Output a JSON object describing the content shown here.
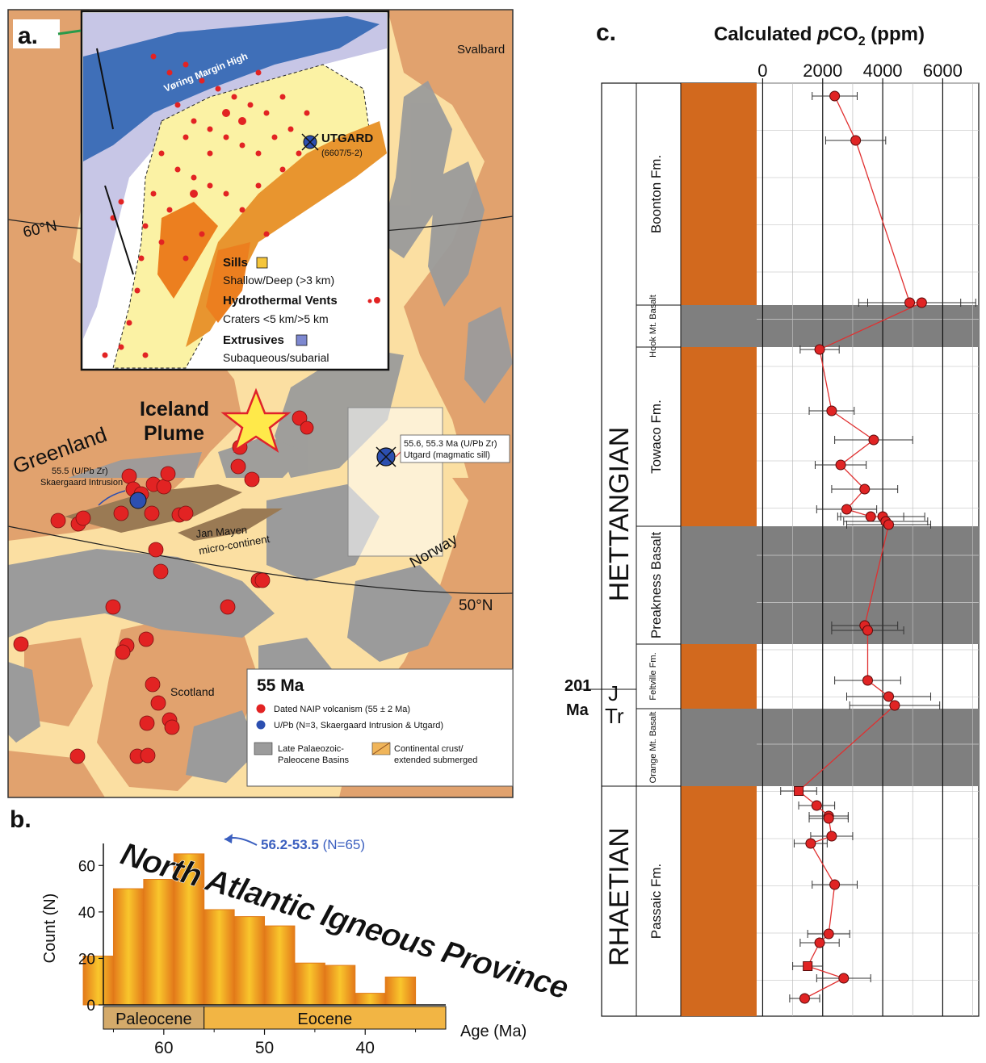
{
  "panel_a": {
    "label": "a.",
    "places": {
      "svalbard": "Svalbard",
      "greenland": "Greenland",
      "norway": "Norway",
      "scotland": "Scotland",
      "jan_mayen_1": "Jan Mayen",
      "jan_mayen_2": "micro-continent",
      "plume_1": "Iceland",
      "plume_2": "Plume",
      "lat60": "60°N",
      "lat50": "50°N",
      "skaergaard_1": "55.5 (U/Pb Zr)",
      "skaergaard_2": "Skaergaard Intrusion",
      "utgard_1": "55.6, 55.3 Ma (U/Pb Zr)",
      "utgard_2": "Utgard (magmatic sill)"
    },
    "inset": {
      "voring": "Vøring Margin High",
      "utgard_title": "UTGARD",
      "utgard_well": "(6607/5-2)",
      "sills_title": "Sills",
      "sills_desc": "Shallow/Deep (>3 km)",
      "vents_title": "Hydrothermal Vents",
      "vents_desc": "Craters <5 km/>5 km",
      "extrusives_title": "Extrusives",
      "extrusives_desc": "Subaqueous/subarial"
    },
    "legend": {
      "title": "55 Ma",
      "dated": "Dated NAIP volcanism (55 ± 2 Ma)",
      "upb": "U/Pb (N=3, Skaergaard Intrusion & Utgard)",
      "basins_1": "Late Palaeozoic-",
      "basins_2": "Paleocene Basins",
      "crust_1": "Continental crust/",
      "crust_2": "extended submerged"
    },
    "colors": {
      "ocean": "#fbdfa2",
      "land": "#e1a26e",
      "crust": "#f0b55a",
      "basin": "#9b9b9b",
      "volcanism": "#e22323",
      "upb": "#2c4fb0"
    }
  },
  "panel_b": {
    "label": "b.",
    "ylabel": "Count (N)",
    "xlabel": "Age (Ma)",
    "overlay": "North Atlantic Igneous Province",
    "annotation_range": "56.2-53.5",
    "annotation_n": "(N=65)",
    "epochs": [
      "Paleocene",
      "Eocene"
    ]
  },
  "panel_c": {
    "label": "c.",
    "title_prefix": "Calculated ",
    "title_p": "p",
    "title_co": "CO",
    "title_sub": "2",
    "title_unit": " (ppm)",
    "stages": [
      "HETTANGIAN",
      "RHAETIAN"
    ],
    "periods": [
      "J",
      "Tr"
    ],
    "boundary_age": "201",
    "boundary_unit": "Ma",
    "formations": [
      "Boonton Fm.",
      "Hook Mt. Basalt",
      "Towaco Fm.",
      "Preakness Basalt",
      "Feltville Fm.",
      "Orange Mt. Basalt",
      "Passaic Fm."
    ]
  },
  "chart_data": [
    {
      "type": "bar",
      "title": "",
      "xlabel": "Age (Ma)",
      "ylabel": "Count (N)",
      "x_tick_labels": [
        "60",
        "50",
        "40"
      ],
      "y_tick_labels": [
        "0",
        "20",
        "40",
        "60"
      ],
      "xlim": [
        66,
        32
      ],
      "ylim": [
        0,
        66
      ],
      "bin_width_ma": 3,
      "bin_left_edges": [
        65,
        62,
        59,
        56,
        53,
        50,
        47,
        44,
        41,
        38,
        35
      ],
      "values": [
        21,
        50,
        54,
        65,
        41,
        38,
        34,
        18,
        17,
        5,
        12
      ],
      "highlight": {
        "range": "56.2-53.5",
        "n": 65
      },
      "epochs": [
        {
          "name": "Paleocene",
          "from": 66,
          "to": 56
        },
        {
          "name": "Eocene",
          "from": 56,
          "to": 32
        }
      ],
      "colors": {
        "bar_edge": "#e07b18",
        "bar_mid": "#f7c02a",
        "paleocene": "#d4aa6a",
        "eocene": "#f2b544"
      }
    },
    {
      "type": "scatter",
      "title": "Calculated pCO2 (ppm)",
      "xlabel": "",
      "x_tick_labels": [
        "0",
        "2000",
        "4000",
        "6000"
      ],
      "xlim": [
        -200,
        7200
      ],
      "y_axis": "stratigraphic position",
      "series": [
        {
          "values": [
            {
              "x": 2400,
              "err": 750
            },
            {
              "x": 3100,
              "err": 1000
            },
            {
              "x": 4900,
              "err": 1700
            },
            {
              "x": 5300,
              "err": 1800
            },
            {
              "x": 1900,
              "err": 650
            },
            {
              "x": 2300,
              "err": 750
            },
            {
              "x": 3700,
              "err": 1300
            },
            {
              "x": 2600,
              "err": 850
            },
            {
              "x": 3400,
              "err": 1100
            },
            {
              "x": 2800,
              "err": 1000
            },
            {
              "x": 3600,
              "err": 1100
            },
            {
              "x": 4000,
              "err": 1400
            },
            {
              "x": 4100,
              "err": 1400
            },
            {
              "x": 4200,
              "err": 1400
            },
            {
              "x": 3400,
              "err": 1100
            },
            {
              "x": 3500,
              "err": 1200
            },
            {
              "x": 3500,
              "err": 1100
            },
            {
              "x": 4200,
              "err": 1400
            },
            {
              "x": 4400,
              "err": 1500
            },
            {
              "x": 1200,
              "err": 600
            },
            {
              "x": 1800,
              "err": 600
            },
            {
              "x": 2200,
              "err": 650
            },
            {
              "x": 2200,
              "err": 650
            },
            {
              "x": 2300,
              "err": 700
            },
            {
              "x": 1600,
              "err": 550
            },
            {
              "x": 2400,
              "err": 750
            },
            {
              "x": 2200,
              "err": 700
            },
            {
              "x": 1900,
              "err": 650
            },
            {
              "x": 1500,
              "err": 500
            },
            {
              "x": 2700,
              "err": 900
            },
            {
              "x": 1400,
              "err": 500
            }
          ]
        }
      ],
      "colors": {
        "marker": "#e02424",
        "line": "#e03030",
        "basalt": "#7f7f7f",
        "column": "#d2691e"
      }
    }
  ]
}
